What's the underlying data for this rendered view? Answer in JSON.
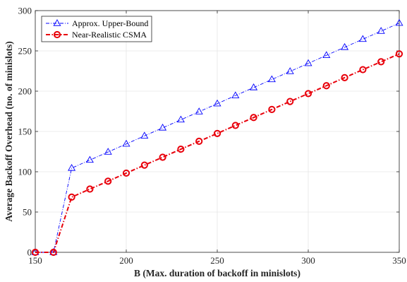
{
  "chart_data": {
    "type": "line",
    "xlabel": "B (Max. duration of backoff in minislots)",
    "ylabel": "Average Backoff Overhead (no. of minislots)",
    "xlim": [
      150,
      350
    ],
    "ylim": [
      0,
      300
    ],
    "xticks": [
      150,
      200,
      250,
      300,
      350
    ],
    "yticks": [
      0,
      50,
      100,
      150,
      200,
      250,
      300
    ],
    "grid": true,
    "legend_position": "top-left",
    "x": [
      150,
      160,
      170,
      180,
      190,
      200,
      210,
      220,
      230,
      240,
      250,
      260,
      270,
      280,
      290,
      300,
      310,
      320,
      330,
      340,
      350
    ],
    "series": [
      {
        "name": "Approx. Upper-Bound",
        "color": "#0000ff",
        "marker": "triangle",
        "style": "dash-dot",
        "values": [
          0,
          0,
          104.5,
          114.5,
          124.5,
          134.5,
          144.5,
          154.5,
          164.5,
          174.5,
          184.5,
          194.5,
          204.5,
          214.5,
          224.5,
          234.5,
          244.5,
          254.5,
          264.5,
          274.5,
          284.5
        ]
      },
      {
        "name": "Near-Realistic CSMA",
        "color": "#e8000b",
        "marker": "circle",
        "style": "dash-dot",
        "values": [
          0,
          0,
          68.5,
          78.5,
          88.3,
          98.3,
          108.2,
          118,
          128,
          137.8,
          147.5,
          157.5,
          167.3,
          177.3,
          187.2,
          197,
          206.8,
          216.8,
          226.7,
          236.5,
          246.3
        ]
      }
    ]
  }
}
